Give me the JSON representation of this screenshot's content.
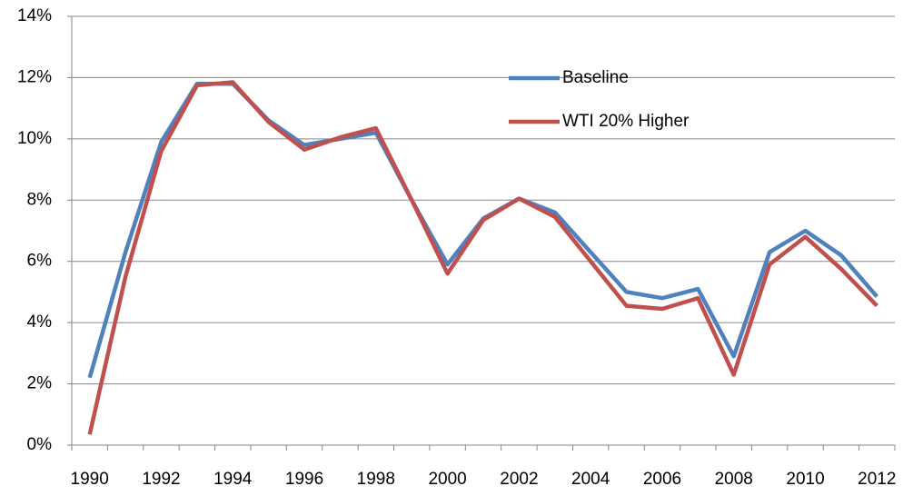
{
  "chart_data": {
    "type": "line",
    "categories": [
      "1990",
      null,
      "1992",
      null,
      "1994",
      null,
      "1996",
      null,
      "1998",
      null,
      "2000",
      null,
      "2002",
      null,
      "2004",
      null,
      "2006",
      null,
      "2008",
      null,
      "2010",
      null,
      "2012"
    ],
    "series": [
      {
        "name": "Baseline",
        "color": "#4f81bd",
        "values": [
          2.2,
          6.3,
          9.9,
          11.8,
          11.8,
          10.6,
          9.8,
          10.0,
          10.2,
          8.0,
          5.9,
          7.4,
          8.05,
          7.6,
          6.3,
          5.0,
          4.8,
          5.1,
          2.9,
          6.3,
          7.0,
          6.2,
          4.85
        ]
      },
      {
        "name": "WTI 20% Higher",
        "color": "#c0504d",
        "values": [
          0.35,
          5.5,
          9.6,
          11.75,
          11.85,
          10.55,
          9.65,
          10.05,
          10.35,
          8.0,
          5.6,
          7.35,
          8.05,
          7.45,
          6.0,
          4.55,
          4.45,
          4.8,
          2.3,
          5.9,
          6.8,
          5.75,
          4.55
        ]
      }
    ],
    "ylim": [
      0,
      14
    ],
    "yticks": [
      {
        "value": 0,
        "label": "0%"
      },
      {
        "value": 2,
        "label": "2%"
      },
      {
        "value": 4,
        "label": "4%"
      },
      {
        "value": 6,
        "label": "6%"
      },
      {
        "value": 8,
        "label": "8%"
      },
      {
        "value": 10,
        "label": "10%"
      },
      {
        "value": 12,
        "label": "12%"
      },
      {
        "value": 14,
        "label": "14%"
      }
    ],
    "grid": true,
    "legend": "upper center"
  }
}
